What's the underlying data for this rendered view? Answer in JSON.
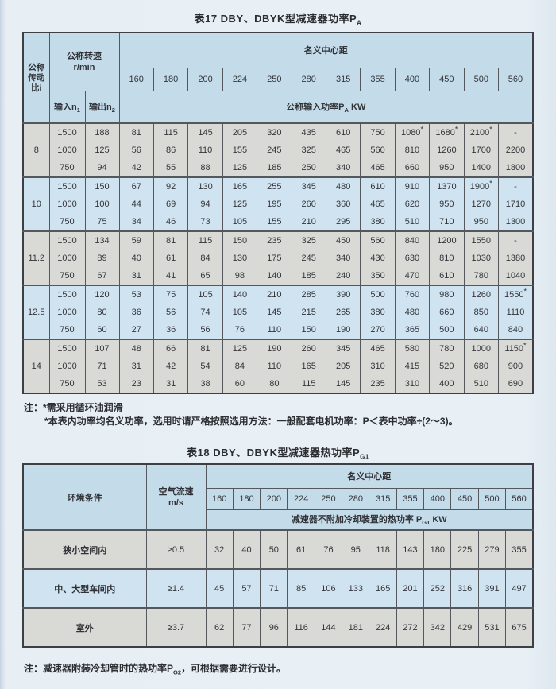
{
  "table17": {
    "title": {
      "text": "表17 DBY、DBYK型减速器功率P",
      "sub": "A"
    },
    "header": {
      "ratio": "公称传动比i",
      "speed_line1": "公称转速",
      "speed_line2": "r/min",
      "center_distance": "名义中心距",
      "sizes": [
        "160",
        "180",
        "200",
        "224",
        "250",
        "280",
        "315",
        "355",
        "400",
        "450",
        "500",
        "560"
      ],
      "input_text": "输入n",
      "input_sub": "1",
      "output_text": "输出n",
      "output_sub": "2",
      "power_text": "公称输入功率P",
      "power_sub": "A",
      "power_suffix": " KW"
    },
    "groups": [
      {
        "ratio": "8",
        "tone": "gray",
        "inputs": [
          "1500",
          "1000",
          "750"
        ],
        "outputs": [
          "188",
          "125",
          "94"
        ],
        "values": [
          [
            "81",
            "115",
            "145",
            "205",
            "320",
            "435",
            "610",
            "750",
            "1080*",
            "1680*",
            "2100*",
            "-"
          ],
          [
            "56",
            "86",
            "110",
            "155",
            "245",
            "325",
            "465",
            "560",
            "810",
            "1260",
            "1700",
            "2200"
          ],
          [
            "42",
            "55",
            "88",
            "125",
            "185",
            "250",
            "340",
            "465",
            "660",
            "950",
            "1400",
            "1800"
          ]
        ]
      },
      {
        "ratio": "10",
        "tone": "blue",
        "inputs": [
          "1500",
          "1000",
          "750"
        ],
        "outputs": [
          "150",
          "100",
          "75"
        ],
        "values": [
          [
            "67",
            "92",
            "130",
            "165",
            "255",
            "345",
            "480",
            "610",
            "910",
            "1370",
            "1900*",
            "-"
          ],
          [
            "44",
            "69",
            "94",
            "125",
            "195",
            "260",
            "360",
            "465",
            "620",
            "950",
            "1270",
            "1710"
          ],
          [
            "34",
            "46",
            "73",
            "105",
            "155",
            "210",
            "295",
            "380",
            "510",
            "710",
            "950",
            "1300"
          ]
        ]
      },
      {
        "ratio": "11.2",
        "tone": "gray",
        "inputs": [
          "1500",
          "1000",
          "750"
        ],
        "outputs": [
          "134",
          "89",
          "67"
        ],
        "values": [
          [
            "59",
            "81",
            "115",
            "150",
            "235",
            "325",
            "450",
            "560",
            "840",
            "1200",
            "1550",
            "-"
          ],
          [
            "40",
            "61",
            "84",
            "130",
            "175",
            "245",
            "340",
            "430",
            "630",
            "810",
            "1030",
            "1380"
          ],
          [
            "31",
            "41",
            "65",
            "98",
            "140",
            "185",
            "240",
            "350",
            "470",
            "610",
            "780",
            "1040"
          ]
        ]
      },
      {
        "ratio": "12.5",
        "tone": "blue",
        "inputs": [
          "1500",
          "1000",
          "750"
        ],
        "outputs": [
          "120",
          "80",
          "60"
        ],
        "values": [
          [
            "53",
            "75",
            "105",
            "140",
            "210",
            "285",
            "390",
            "500",
            "760",
            "980",
            "1260",
            "1550*"
          ],
          [
            "36",
            "56",
            "74",
            "105",
            "145",
            "215",
            "265",
            "380",
            "480",
            "660",
            "850",
            "1110"
          ],
          [
            "27",
            "36",
            "56",
            "76",
            "110",
            "150",
            "190",
            "270",
            "365",
            "500",
            "640",
            "840"
          ]
        ]
      },
      {
        "ratio": "14",
        "tone": "gray",
        "inputs": [
          "1500",
          "1000",
          "750"
        ],
        "outputs": [
          "107",
          "71",
          "53"
        ],
        "values": [
          [
            "48",
            "66",
            "81",
            "125",
            "190",
            "260",
            "345",
            "465",
            "580",
            "780",
            "1000",
            "1150*"
          ],
          [
            "31",
            "42",
            "54",
            "84",
            "110",
            "165",
            "205",
            "310",
            "415",
            "520",
            "680",
            "900"
          ],
          [
            "23",
            "31",
            "38",
            "60",
            "80",
            "115",
            "145",
            "235",
            "310",
            "400",
            "510",
            "690"
          ]
        ]
      }
    ],
    "notes": [
      "注：*需采用循环油润滑",
      "*本表内功率均名义功率，选用时请严格按照选用方法：一般配套电机功率：P＜表中功率÷(2～3)。"
    ]
  },
  "table18": {
    "title": {
      "text": "表18 DBY、DBYK型减速器热功率P",
      "sub": "G1"
    },
    "header": {
      "env": "环境条件",
      "air_line1": "空气流速",
      "air_line2": "m/s",
      "center_distance": "名义中心距",
      "sizes": [
        "160",
        "180",
        "200",
        "224",
        "250",
        "280",
        "315",
        "355",
        "400",
        "450",
        "500",
        "560"
      ],
      "power_text": "减速器不附加冷却装置的热功率 P",
      "power_sub": "G1",
      "power_suffix": " KW"
    },
    "rows": [
      {
        "env": "狭小空间内",
        "air": "≥0.5",
        "tone": "gray",
        "values": [
          "32",
          "40",
          "50",
          "61",
          "76",
          "95",
          "118",
          "143",
          "180",
          "225",
          "279",
          "355"
        ]
      },
      {
        "env": "中、大型车间内",
        "air": "≥1.4",
        "tone": "blue",
        "values": [
          "45",
          "57",
          "71",
          "85",
          "106",
          "133",
          "165",
          "201",
          "252",
          "316",
          "391",
          "497"
        ]
      },
      {
        "env": "室外",
        "air": "≥3.7",
        "tone": "gray",
        "values": [
          "62",
          "77",
          "96",
          "116",
          "144",
          "181",
          "224",
          "272",
          "342",
          "429",
          "531",
          "675"
        ]
      }
    ],
    "note": {
      "text": "注：减速器附装冷却管时的热功率P",
      "sub": "G2",
      "suffix": "，可根据需要进行设计。"
    }
  },
  "colors": {
    "header_bg": "#c4dcea",
    "row_gray": "#d9dad6",
    "row_blue": "#cfe3f0",
    "border": "#54585d",
    "page_bg": "#e7eff5"
  }
}
